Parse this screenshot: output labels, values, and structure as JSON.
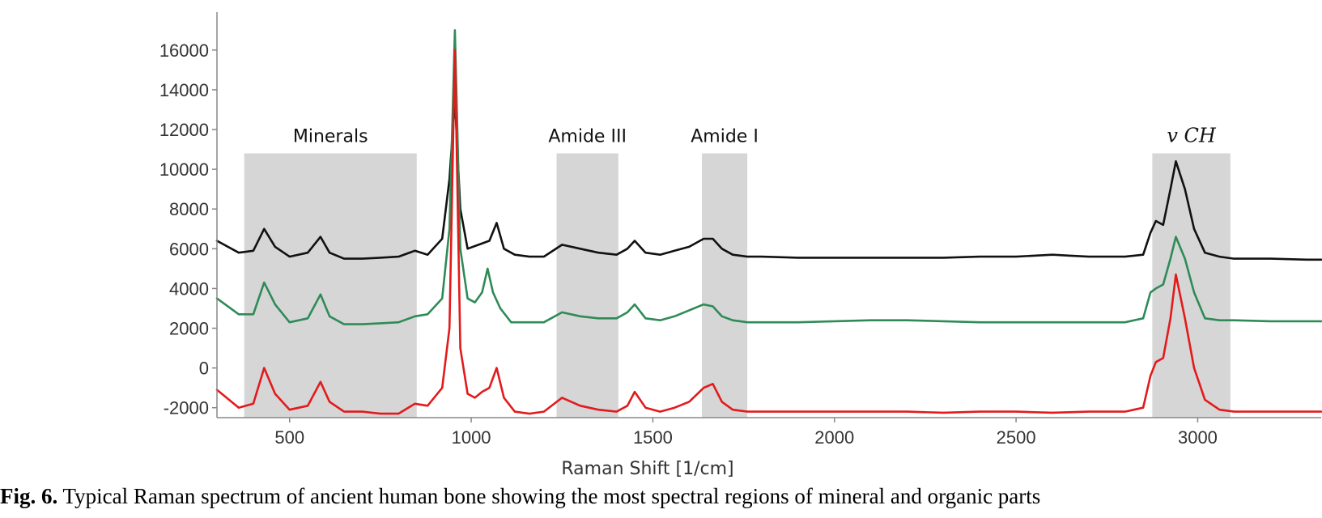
{
  "chart_data": {
    "type": "line",
    "xlabel": "Raman Shift [1/cm]",
    "ylabel": "",
    "xlim": [
      300,
      3340
    ],
    "ylim": [
      -2500,
      17500
    ],
    "x_ticks": [
      "500",
      "1000",
      "1500",
      "2000",
      "2500",
      "3000"
    ],
    "y_ticks": [
      "16000",
      "14000",
      "12000",
      "10000",
      "8000",
      "6000",
      "4000",
      "2000",
      "0",
      "-2000"
    ],
    "grid": false,
    "legend": "none",
    "regions": [
      {
        "label": "Minerals",
        "x_start": 375,
        "x_end": 850,
        "y_top": 10800,
        "italic": false
      },
      {
        "label": "Amide III",
        "x_start": 1235,
        "x_end": 1405,
        "y_top": 10800,
        "italic": false
      },
      {
        "label": "Amide I",
        "x_start": 1635,
        "x_end": 1760,
        "y_top": 10800,
        "italic": false
      },
      {
        "label": "v CH",
        "x_start": 2875,
        "x_end": 3090,
        "y_top": 10800,
        "italic": true
      }
    ],
    "series": [
      {
        "color": "#111111",
        "x": [
          300,
          360,
          400,
          430,
          460,
          500,
          550,
          585,
          610,
          650,
          700,
          750,
          800,
          845,
          880,
          920,
          940,
          955,
          970,
          990,
          1020,
          1050,
          1070,
          1090,
          1120,
          1160,
          1200,
          1250,
          1300,
          1350,
          1400,
          1430,
          1450,
          1480,
          1520,
          1560,
          1600,
          1640,
          1665,
          1690,
          1720,
          1760,
          1800,
          1900,
          2000,
          2100,
          2200,
          2300,
          2400,
          2500,
          2600,
          2650,
          2700,
          2800,
          2850,
          2870,
          2885,
          2905,
          2925,
          2940,
          2965,
          2990,
          3020,
          3060,
          3100,
          3200,
          3300,
          3340
        ],
        "values": [
          6400,
          5800,
          5900,
          7000,
          6100,
          5600,
          5800,
          6600,
          5800,
          5500,
          5500,
          5550,
          5600,
          5900,
          5700,
          6500,
          9500,
          13500,
          8000,
          6000,
          6200,
          6400,
          7300,
          6000,
          5700,
          5600,
          5600,
          6200,
          6000,
          5800,
          5700,
          6000,
          6400,
          5800,
          5700,
          5900,
          6100,
          6500,
          6500,
          6000,
          5700,
          5600,
          5600,
          5550,
          5550,
          5550,
          5550,
          5550,
          5600,
          5600,
          5700,
          5650,
          5600,
          5600,
          5700,
          6800,
          7400,
          7200,
          9000,
          10400,
          9000,
          7000,
          5800,
          5600,
          5500,
          5500,
          5450,
          5450
        ]
      },
      {
        "color": "#2e8b57",
        "x": [
          300,
          360,
          400,
          430,
          460,
          500,
          550,
          585,
          610,
          650,
          700,
          750,
          800,
          845,
          880,
          920,
          940,
          955,
          970,
          990,
          1010,
          1030,
          1045,
          1060,
          1080,
          1110,
          1160,
          1200,
          1250,
          1300,
          1350,
          1400,
          1430,
          1450,
          1480,
          1520,
          1560,
          1600,
          1640,
          1665,
          1690,
          1720,
          1760,
          1800,
          1900,
          2000,
          2100,
          2200,
          2300,
          2400,
          2500,
          2600,
          2700,
          2800,
          2850,
          2870,
          2885,
          2905,
          2925,
          2940,
          2965,
          2990,
          3020,
          3060,
          3100,
          3200,
          3300,
          3340
        ],
        "values": [
          3500,
          2700,
          2700,
          4300,
          3200,
          2300,
          2500,
          3700,
          2600,
          2200,
          2200,
          2250,
          2300,
          2600,
          2700,
          3500,
          7000,
          17000,
          6000,
          3500,
          3300,
          3800,
          5000,
          3800,
          3000,
          2300,
          2300,
          2300,
          2800,
          2600,
          2500,
          2500,
          2800,
          3200,
          2500,
          2400,
          2600,
          2900,
          3200,
          3100,
          2600,
          2400,
          2300,
          2300,
          2300,
          2350,
          2400,
          2400,
          2350,
          2300,
          2300,
          2300,
          2300,
          2300,
          2500,
          3800,
          4000,
          4200,
          5500,
          6600,
          5500,
          3800,
          2500,
          2400,
          2400,
          2350,
          2350,
          2350
        ]
      },
      {
        "color": "#e31a1c",
        "x": [
          300,
          360,
          400,
          430,
          460,
          500,
          550,
          585,
          610,
          650,
          700,
          750,
          800,
          845,
          880,
          920,
          940,
          955,
          970,
          990,
          1010,
          1030,
          1050,
          1070,
          1090,
          1120,
          1160,
          1200,
          1250,
          1300,
          1350,
          1400,
          1430,
          1450,
          1480,
          1520,
          1560,
          1600,
          1640,
          1665,
          1690,
          1720,
          1760,
          1800,
          1900,
          2000,
          2100,
          2200,
          2300,
          2400,
          2500,
          2600,
          2700,
          2800,
          2850,
          2870,
          2885,
          2905,
          2925,
          2940,
          2965,
          2990,
          3020,
          3060,
          3100,
          3200,
          3300,
          3340
        ],
        "values": [
          -1100,
          -2000,
          -1800,
          0,
          -1300,
          -2100,
          -1900,
          -700,
          -1700,
          -2200,
          -2200,
          -2300,
          -2300,
          -1800,
          -1900,
          -1000,
          2000,
          16000,
          1000,
          -1300,
          -1500,
          -1200,
          -1000,
          0,
          -1500,
          -2200,
          -2300,
          -2200,
          -1500,
          -1900,
          -2100,
          -2200,
          -1900,
          -1200,
          -2000,
          -2200,
          -2000,
          -1700,
          -1000,
          -800,
          -1700,
          -2100,
          -2200,
          -2200,
          -2200,
          -2200,
          -2200,
          -2200,
          -2250,
          -2200,
          -2200,
          -2250,
          -2200,
          -2200,
          -2000,
          -400,
          300,
          500,
          2500,
          4700,
          2500,
          0,
          -1600,
          -2100,
          -2200,
          -2200,
          -2200,
          -2200
        ]
      }
    ]
  },
  "caption": {
    "label": "Fig. 6.",
    "text": "Typical Raman spectrum of ancient human bone showing the most spectral regions of mineral and organic parts"
  }
}
